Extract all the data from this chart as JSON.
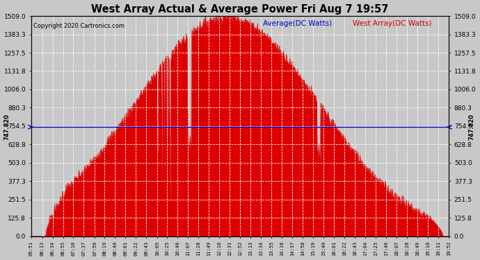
{
  "title": "West Array Actual & Average Power Fri Aug 7 19:57",
  "copyright": "Copyright 2020 Cartronics.com",
  "legend_avg": "Average(DC Watts)",
  "legend_west": "West Array(DC Watts)",
  "avg_value": 747.82,
  "ymax": 1509.0,
  "yticks": [
    0.0,
    125.8,
    251.5,
    377.3,
    503.0,
    628.8,
    754.5,
    880.3,
    1006.0,
    1131.8,
    1257.5,
    1383.3,
    1509.0
  ],
  "yticklabels": [
    "0.0",
    "125.8",
    "251.5",
    "377.3",
    "503.0",
    "628.8",
    "754.5",
    "880.3",
    "1006.0",
    "1131.8",
    "1257.5",
    "1383.3",
    "1509.0"
  ],
  "avg_label": "747.820",
  "background_color": "#c8c8c8",
  "plot_bg_color": "#c8c8c8",
  "fill_color": "#dd0000",
  "avg_line_color": "#0000cc",
  "grid_color": "#ffffff",
  "title_color": "#000000",
  "copyright_color": "#000000",
  "legend_avg_color": "#0000cc",
  "legend_west_color": "#cc0000",
  "tick_labels": [
    "05:51",
    "06:13",
    "06:34",
    "06:55",
    "07:16",
    "07:37",
    "07:59",
    "08:19",
    "08:40",
    "09:01",
    "09:22",
    "09:43",
    "10:05",
    "10:25",
    "10:46",
    "11:07",
    "11:28",
    "11:49",
    "12:10",
    "12:31",
    "12:52",
    "13:13",
    "13:34",
    "13:55",
    "14:16",
    "14:37",
    "14:58",
    "15:19",
    "15:40",
    "16:01",
    "16:22",
    "16:43",
    "17:04",
    "17:25",
    "17:46",
    "18:07",
    "18:28",
    "18:49",
    "19:10",
    "19:31",
    "19:52"
  ]
}
